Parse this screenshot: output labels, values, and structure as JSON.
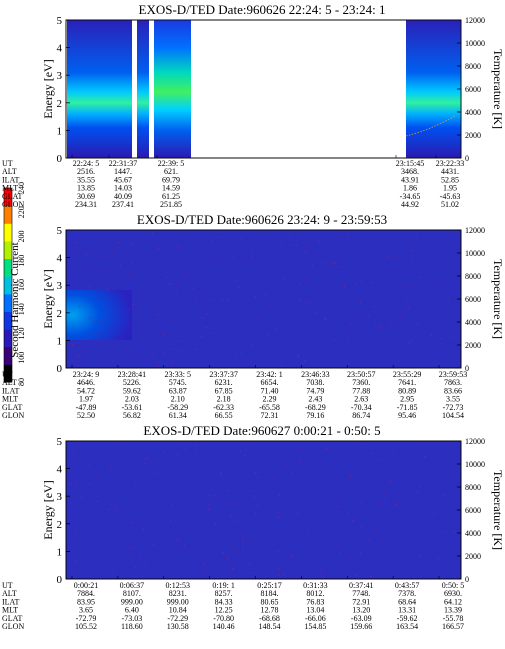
{
  "chart_data": [
    {
      "type": "heatmap",
      "title": "EXOS-D/TED   Date:960626  22:24: 5 - 23:24: 1",
      "ylabel": "Energy [eV]",
      "ylim": [
        0,
        5
      ],
      "yticks": [
        "0",
        "1",
        "2",
        "3",
        "4",
        "5"
      ],
      "y2label": "Temperature [K]",
      "y2lim": [
        0,
        12000
      ],
      "y2ticks": [
        "0",
        "2000",
        "4000",
        "6000",
        "8000",
        "10000",
        "12000"
      ],
      "row_labels": [
        "UT",
        "ALT",
        "ILAT",
        "MLT",
        "GLAT",
        "GLON"
      ],
      "table_columns": [
        [
          "22:24: 5",
          "2516.",
          "35.55",
          "13.85",
          "30.69",
          "234.31"
        ],
        [
          "22:31:37",
          "1447.",
          "45.67",
          "14.03",
          "40.09",
          "237.41"
        ],
        [
          "22:39: 5",
          "621.",
          "69.79",
          "14.59",
          "61.25",
          "251.85"
        ],
        [
          "23:15:45",
          "3468.",
          "43.91",
          "1.86",
          "-34.65",
          "44.92"
        ],
        [
          "23:22:33",
          "4431.",
          "52.85",
          "1.95",
          "-45.63",
          "51.02"
        ]
      ],
      "data_segments": [
        {
          "ut_start": "22:24: 5",
          "ut_end": "22:31:37",
          "peak_energy_ev": 2.0
        },
        {
          "ut_start": "22:31:37",
          "ut_end": "22:33:00",
          "peak_energy_ev": 2.0
        },
        {
          "ut_start": "22:35:30",
          "ut_end": "22:44:00",
          "peak_energy_ev": 2.2
        },
        {
          "ut_start": "23:15:45",
          "ut_end": "23:24: 1",
          "peak_energy_ev": 2.0
        }
      ]
    },
    {
      "type": "heatmap",
      "title": "EXOS-D/TED   Date:960626  23:24: 9 - 23:59:53",
      "ylabel": "Energy [eV]",
      "ylim": [
        0,
        5
      ],
      "yticks": [
        "0",
        "1",
        "2",
        "3",
        "4",
        "5"
      ],
      "y2label": "Temperature [K]",
      "y2lim": [
        0,
        12000
      ],
      "y2ticks": [
        "0",
        "2000",
        "4000",
        "6000",
        "8000",
        "10000",
        "12000"
      ],
      "row_labels": [
        "UT",
        "ALT",
        "ILAT",
        "MLT",
        "GLAT",
        "GLON"
      ],
      "table_columns": [
        [
          "23:24: 9",
          "4646.",
          "54.72",
          "1.97",
          "-47.89",
          "52.50"
        ],
        [
          "23:28:41",
          "5226.",
          "59.62",
          "2.03",
          "-53.61",
          "56.82"
        ],
        [
          "23:33: 5",
          "5745.",
          "63.87",
          "2.10",
          "-58.29",
          "61.34"
        ],
        [
          "23:37:37",
          "6231.",
          "67.85",
          "2.18",
          "-62.33",
          "66.55"
        ],
        [
          "23:42: 1",
          "6654.",
          "71.40",
          "2.29",
          "-65.58",
          "72.31"
        ],
        [
          "23:46:33",
          "7038.",
          "74.79",
          "2.43",
          "-68.29",
          "79.16"
        ],
        [
          "23:50:57",
          "7360.",
          "77.88",
          "2.63",
          "-70.34",
          "86.74"
        ],
        [
          "23:55:29",
          "7641.",
          "80.89",
          "2.95",
          "-71.85",
          "95.46"
        ],
        [
          "23:59:53",
          "7863.",
          "83.66",
          "3.55",
          "-72.73",
          "104.54"
        ]
      ],
      "data_segments": [
        {
          "ut_start": "23:24: 9",
          "ut_end": "23:28:00",
          "peak_energy_ev": 1.8
        }
      ]
    },
    {
      "type": "heatmap",
      "title": "EXOS-D/TED   Date:960627   0:00:21 - 0:50: 5",
      "ylabel": "Energy [eV]",
      "ylim": [
        0,
        5
      ],
      "yticks": [
        "0",
        "1",
        "2",
        "3",
        "4",
        "5"
      ],
      "y2label": "Temperature [K]",
      "y2lim": [
        0,
        12000
      ],
      "y2ticks": [
        "0",
        "2000",
        "4000",
        "6000",
        "8000",
        "10000",
        "12000"
      ],
      "row_labels": [
        "UT",
        "ALT",
        "ILAT",
        "MLT",
        "GLAT",
        "GLON"
      ],
      "table_columns": [
        [
          "0:00:21",
          "7884.",
          "83.95",
          "3.65",
          "-72.79",
          "105.52"
        ],
        [
          "0:06:37",
          "8107.",
          "999.00",
          "6.40",
          "-73.03",
          "118.60"
        ],
        [
          "0:12:53",
          "8231.",
          "999.00",
          "10.84",
          "-72.29",
          "130.58"
        ],
        [
          "0:19: 1",
          "8257.",
          "84.33",
          "12.25",
          "-70.80",
          "140.46"
        ],
        [
          "0:25:17",
          "8184.",
          "80.65",
          "12.78",
          "-68.68",
          "148.54"
        ],
        [
          "0:31:33",
          "8012.",
          "76.83",
          "13.04",
          "-66.06",
          "154.85"
        ],
        [
          "0:37:41",
          "7748.",
          "72.91",
          "13.20",
          "-63.09",
          "159.66"
        ],
        [
          "0:43:57",
          "7378.",
          "68.64",
          "13.31",
          "-59.62",
          "163.54"
        ],
        [
          "0:50: 5",
          "6930.",
          "64.12",
          "13.39",
          "-55.78",
          "166.57"
        ]
      ],
      "data_segments": []
    }
  ],
  "colorbar": {
    "label": "Second Harmonic Current",
    "ticks": [
      "80",
      "100",
      "120",
      "140",
      "160",
      "180",
      "200",
      "220",
      "240"
    ],
    "range": [
      80,
      240
    ],
    "colors": [
      "#000000",
      "#3a0078",
      "#2a18b8",
      "#1038e0",
      "#0070ff",
      "#00c0e0",
      "#00e080",
      "#b0f000",
      "#ffff00",
      "#ff8000",
      "#ff0000"
    ]
  }
}
